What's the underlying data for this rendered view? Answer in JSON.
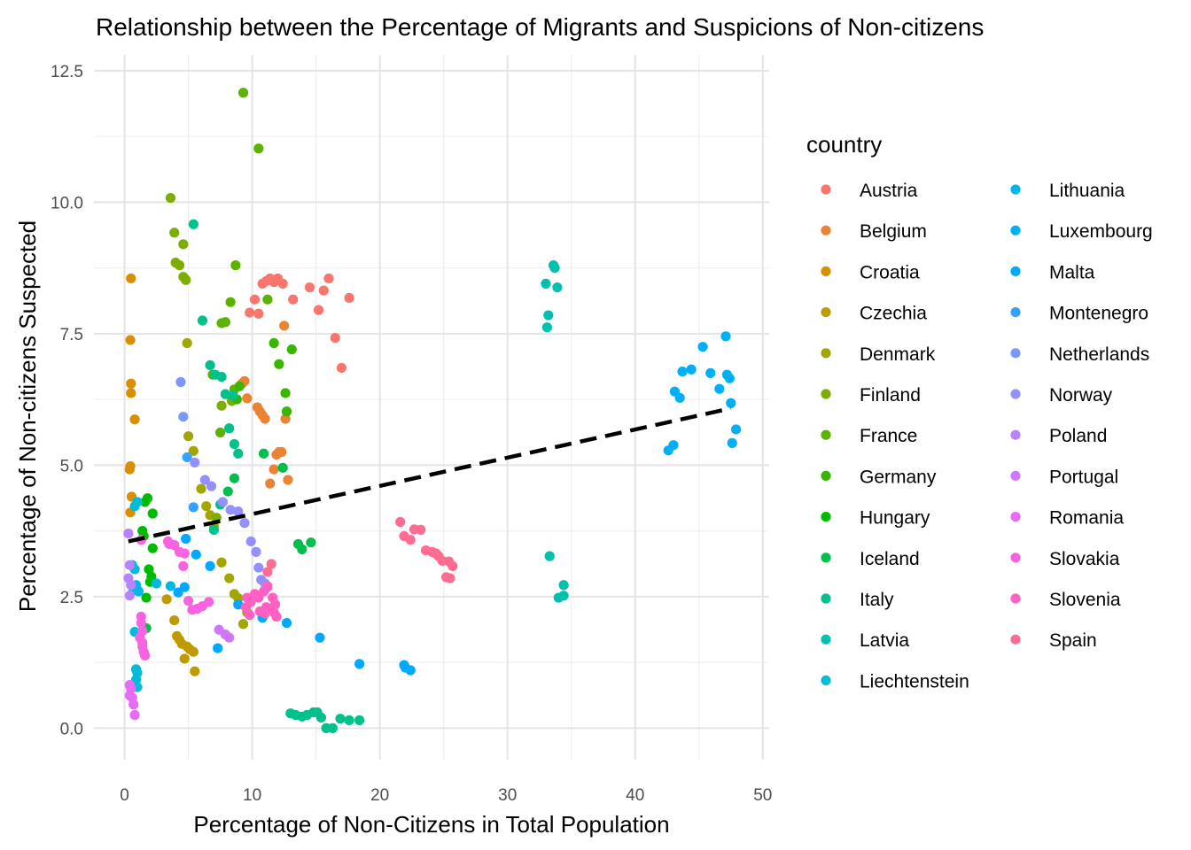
{
  "chart_data": {
    "type": "scatter",
    "title": "Relationship between the Percentage of Migrants and Suspicions of Non-citizens",
    "xlabel": "Percentage of Non-Citizens in Total Population",
    "ylabel": "Percentage of Non-citizens Suspected",
    "xlim": [
      -2.4,
      50.5
    ],
    "ylim": [
      -0.6,
      12.8
    ],
    "x_ticks": [
      0,
      10,
      20,
      30,
      40,
      50
    ],
    "y_ticks": [
      0.0,
      2.5,
      5.0,
      7.5,
      10.0,
      12.5
    ],
    "x_tick_labels": [
      "0",
      "10",
      "20",
      "30",
      "40",
      "50"
    ],
    "y_tick_labels": [
      "0.0",
      "2.5",
      "5.0",
      "7.5",
      "10.0",
      "12.5"
    ],
    "grid": true,
    "legend_title": "country",
    "legend_position": "right",
    "trend_line": {
      "style": "dashed",
      "color": "#000000",
      "x": [
        0.3,
        47.5
      ],
      "y": [
        3.55,
        6.08
      ]
    },
    "series": [
      {
        "name": "Austria",
        "color": "#F8766D",
        "points": [
          [
            9.8,
            7.9
          ],
          [
            10.2,
            8.15
          ],
          [
            10.5,
            7.88
          ],
          [
            10.8,
            8.45
          ],
          [
            11.1,
            8.5
          ],
          [
            11.4,
            8.55
          ],
          [
            11.7,
            8.48
          ],
          [
            12.0,
            8.55
          ],
          [
            12.4,
            8.45
          ],
          [
            13.2,
            8.15
          ],
          [
            14.5,
            8.38
          ],
          [
            15.2,
            7.95
          ],
          [
            15.6,
            8.32
          ],
          [
            16.0,
            8.55
          ],
          [
            16.5,
            7.42
          ],
          [
            17.0,
            6.85
          ],
          [
            17.6,
            8.18
          ]
        ]
      },
      {
        "name": "Belgium",
        "color": "#EB8335",
        "points": [
          [
            9.4,
            6.6
          ],
          [
            9.6,
            6.27
          ],
          [
            10.4,
            6.1
          ],
          [
            10.6,
            6.02
          ],
          [
            10.8,
            5.95
          ],
          [
            11.0,
            5.88
          ],
          [
            11.4,
            4.65
          ],
          [
            11.7,
            4.92
          ],
          [
            11.9,
            5.2
          ],
          [
            12.1,
            5.25
          ],
          [
            12.3,
            5.25
          ],
          [
            12.6,
            5.88
          ],
          [
            12.8,
            4.72
          ],
          [
            12.5,
            7.65
          ],
          [
            9.2,
            6.55
          ]
        ]
      },
      {
        "name": "Croatia",
        "color": "#D89000",
        "points": [
          [
            0.5,
            8.55
          ],
          [
            0.45,
            7.38
          ],
          [
            0.5,
            6.55
          ],
          [
            0.5,
            6.37
          ],
          [
            0.8,
            5.87
          ],
          [
            0.45,
            4.98
          ],
          [
            0.4,
            4.92
          ],
          [
            0.55,
            4.4
          ],
          [
            0.45,
            4.1
          ]
        ]
      },
      {
        "name": "Czechia",
        "color": "#C09B00",
        "points": [
          [
            3.3,
            2.45
          ],
          [
            3.9,
            2.05
          ],
          [
            4.1,
            1.75
          ],
          [
            4.3,
            1.68
          ],
          [
            4.5,
            1.6
          ],
          [
            4.7,
            1.32
          ],
          [
            4.9,
            1.55
          ],
          [
            5.1,
            1.5
          ],
          [
            5.4,
            1.45
          ],
          [
            5.5,
            1.08
          ]
        ]
      },
      {
        "name": "Denmark",
        "color": "#A3A500",
        "points": [
          [
            4.9,
            7.32
          ],
          [
            5.0,
            5.55
          ],
          [
            5.4,
            5.27
          ],
          [
            6.0,
            4.55
          ],
          [
            6.4,
            4.22
          ],
          [
            6.7,
            4.05
          ],
          [
            7.0,
            3.85
          ],
          [
            7.6,
            3.15
          ],
          [
            8.2,
            2.85
          ],
          [
            8.6,
            2.55
          ],
          [
            8.9,
            2.47
          ],
          [
            9.3,
            1.98
          ],
          [
            9.6,
            2.2
          ]
        ]
      },
      {
        "name": "Finland",
        "color": "#7CAE00",
        "points": [
          [
            3.6,
            10.08
          ],
          [
            3.9,
            9.42
          ],
          [
            4.0,
            8.85
          ],
          [
            4.3,
            8.8
          ],
          [
            4.6,
            9.2
          ],
          [
            4.6,
            8.58
          ],
          [
            4.8,
            8.52
          ],
          [
            7.6,
            6.13
          ],
          [
            8.4,
            6.22
          ],
          [
            7.2,
            4.0
          ]
        ]
      },
      {
        "name": "France",
        "color": "#5BB300",
        "points": [
          [
            9.3,
            12.08
          ],
          [
            10.5,
            11.02
          ],
          [
            8.7,
            8.8
          ],
          [
            8.3,
            8.1
          ],
          [
            7.6,
            7.7
          ],
          [
            7.9,
            7.72
          ],
          [
            11.2,
            8.15
          ],
          [
            6.9,
            6.72
          ],
          [
            7.5,
            5.62
          ],
          [
            8.6,
            6.44
          ]
        ]
      },
      {
        "name": "Germany",
        "color": "#39B600",
        "points": [
          [
            11.7,
            7.32
          ],
          [
            12.1,
            6.92
          ],
          [
            12.6,
            6.37
          ],
          [
            12.7,
            6.02
          ],
          [
            13.1,
            7.2
          ],
          [
            8.8,
            6.25
          ],
          [
            9.0,
            6.5
          ]
        ]
      },
      {
        "name": "Hungary",
        "color": "#00BB00",
        "points": [
          [
            1.6,
            4.3
          ],
          [
            1.8,
            4.37
          ],
          [
            2.2,
            4.08
          ],
          [
            1.4,
            3.75
          ],
          [
            1.5,
            3.65
          ],
          [
            2.2,
            3.42
          ],
          [
            1.9,
            3.02
          ],
          [
            2.1,
            2.88
          ],
          [
            2.0,
            2.78
          ],
          [
            1.7,
            2.48
          ]
        ]
      },
      {
        "name": "Iceland",
        "color": "#00BF4B",
        "points": [
          [
            13.6,
            3.5
          ],
          [
            13.9,
            3.4
          ],
          [
            14.6,
            3.53
          ],
          [
            10.9,
            5.22
          ],
          [
            12.4,
            4.95
          ],
          [
            8.6,
            4.75
          ],
          [
            8.1,
            4.5
          ],
          [
            1.7,
            1.9
          ]
        ]
      },
      {
        "name": "Italy",
        "color": "#00C08B",
        "points": [
          [
            5.4,
            9.58
          ],
          [
            6.1,
            7.75
          ],
          [
            6.7,
            6.9
          ],
          [
            7.1,
            6.72
          ],
          [
            7.6,
            6.68
          ],
          [
            7.9,
            6.35
          ],
          [
            8.5,
            6.32
          ],
          [
            8.2,
            5.7
          ],
          [
            8.6,
            5.4
          ],
          [
            8.9,
            5.22
          ],
          [
            7.0,
            3.77
          ],
          [
            7.5,
            4.25
          ],
          [
            13.0,
            0.28
          ],
          [
            13.4,
            0.25
          ],
          [
            13.9,
            0.22
          ],
          [
            14.3,
            0.25
          ],
          [
            14.8,
            0.3
          ],
          [
            15.1,
            0.3
          ],
          [
            15.4,
            0.2
          ],
          [
            15.8,
            0.0
          ],
          [
            16.3,
            0.0
          ],
          [
            16.9,
            0.18
          ],
          [
            17.6,
            0.15
          ],
          [
            18.4,
            0.15
          ]
        ]
      },
      {
        "name": "Latvia",
        "color": "#00C0AF",
        "points": [
          [
            33.0,
            8.45
          ],
          [
            33.6,
            8.8
          ],
          [
            33.7,
            8.75
          ],
          [
            33.9,
            8.38
          ],
          [
            33.2,
            7.85
          ],
          [
            33.1,
            7.62
          ],
          [
            33.3,
            3.27
          ],
          [
            34.0,
            2.48
          ],
          [
            34.4,
            2.52
          ],
          [
            34.4,
            2.72
          ]
        ]
      },
      {
        "name": "Liechtenstein",
        "color": "#00BCD8",
        "points": [
          [
            0.8,
            4.22
          ],
          [
            1.0,
            4.3
          ],
          [
            0.6,
            3.1
          ],
          [
            0.8,
            3.02
          ],
          [
            0.7,
            2.62
          ],
          [
            0.8,
            1.83
          ],
          [
            0.9,
            1.12
          ],
          [
            1.0,
            1.05
          ],
          [
            0.9,
            0.92
          ],
          [
            1.0,
            0.78
          ]
        ]
      },
      {
        "name": "Lithuania",
        "color": "#00B8E7",
        "points": [
          [
            2.5,
            2.75
          ],
          [
            3.6,
            2.7
          ],
          [
            0.9,
            2.72
          ],
          [
            1.1,
            2.6
          ]
        ]
      },
      {
        "name": "Luxembourg",
        "color": "#00B0F6",
        "points": [
          [
            42.6,
            5.28
          ],
          [
            43.0,
            5.38
          ],
          [
            43.1,
            6.4
          ],
          [
            43.5,
            6.28
          ],
          [
            43.7,
            6.78
          ],
          [
            44.4,
            6.82
          ],
          [
            45.3,
            7.25
          ],
          [
            45.9,
            6.75
          ],
          [
            46.6,
            6.45
          ],
          [
            47.1,
            7.45
          ],
          [
            47.2,
            6.72
          ],
          [
            47.4,
            6.65
          ],
          [
            47.5,
            6.18
          ],
          [
            47.6,
            5.42
          ],
          [
            47.9,
            5.68
          ]
        ]
      },
      {
        "name": "Malta",
        "color": "#00A9FF",
        "points": [
          [
            4.8,
            3.6
          ],
          [
            5.6,
            3.3
          ],
          [
            4.7,
            2.68
          ],
          [
            4.2,
            2.58
          ],
          [
            6.7,
            3.08
          ],
          [
            7.3,
            1.52
          ],
          [
            8.9,
            2.35
          ],
          [
            10.8,
            2.1
          ],
          [
            12.7,
            2.0
          ],
          [
            15.3,
            1.72
          ],
          [
            18.4,
            1.22
          ],
          [
            21.9,
            1.2
          ],
          [
            22.0,
            1.15
          ],
          [
            22.4,
            1.1
          ]
        ]
      },
      {
        "name": "Montenegro",
        "color": "#35A2FF",
        "points": [
          [
            4.9,
            5.15
          ],
          [
            5.4,
            4.2
          ]
        ]
      },
      {
        "name": "Netherlands",
        "color": "#7997FF",
        "points": [
          [
            4.4,
            6.58
          ],
          [
            4.6,
            5.92
          ]
        ]
      },
      {
        "name": "Norway",
        "color": "#9590FF",
        "points": [
          [
            5.5,
            5.05
          ],
          [
            6.3,
            4.72
          ],
          [
            6.8,
            4.6
          ],
          [
            7.7,
            4.3
          ],
          [
            8.3,
            4.15
          ],
          [
            8.9,
            4.12
          ],
          [
            9.4,
            3.9
          ],
          [
            9.9,
            3.55
          ],
          [
            10.3,
            3.35
          ],
          [
            10.5,
            3.05
          ],
          [
            10.7,
            2.82
          ],
          [
            11.0,
            2.75
          ],
          [
            11.2,
            2.68
          ]
        ]
      },
      {
        "name": "Poland",
        "color": "#B983FF",
        "points": [
          [
            0.3,
            3.7
          ],
          [
            0.4,
            3.1
          ],
          [
            0.3,
            2.85
          ],
          [
            0.5,
            2.72
          ],
          [
            0.4,
            2.52
          ]
        ]
      },
      {
        "name": "Portugal",
        "color": "#CF78FF",
        "points": [
          [
            7.4,
            1.87
          ],
          [
            7.9,
            1.78
          ],
          [
            8.2,
            1.72
          ]
        ]
      },
      {
        "name": "Romania",
        "color": "#E76BF3",
        "points": [
          [
            0.4,
            0.82
          ],
          [
            0.5,
            0.75
          ],
          [
            0.4,
            0.62
          ],
          [
            0.6,
            0.58
          ],
          [
            0.7,
            0.45
          ],
          [
            0.8,
            0.25
          ]
        ]
      },
      {
        "name": "Slovakia",
        "color": "#F763E0",
        "points": [
          [
            1.3,
            3.58
          ],
          [
            3.4,
            3.55
          ],
          [
            3.5,
            3.5
          ],
          [
            3.9,
            3.48
          ],
          [
            4.3,
            3.35
          ],
          [
            4.7,
            3.32
          ],
          [
            4.6,
            3.08
          ],
          [
            5.0,
            2.42
          ],
          [
            5.3,
            2.25
          ],
          [
            5.7,
            2.27
          ],
          [
            6.1,
            2.32
          ],
          [
            6.6,
            2.4
          ],
          [
            1.3,
            2.12
          ],
          [
            1.3,
            2.0
          ],
          [
            1.4,
            1.85
          ],
          [
            1.2,
            1.72
          ],
          [
            1.4,
            1.62
          ],
          [
            1.4,
            1.55
          ],
          [
            1.5,
            1.45
          ],
          [
            1.6,
            1.38
          ]
        ]
      },
      {
        "name": "Slovenia",
        "color": "#FF61C3",
        "points": [
          [
            9.6,
            2.48
          ],
          [
            9.9,
            2.4
          ],
          [
            10.2,
            2.55
          ],
          [
            10.5,
            2.48
          ],
          [
            10.9,
            2.6
          ],
          [
            11.2,
            2.7
          ],
          [
            11.6,
            2.48
          ],
          [
            11.8,
            2.35
          ],
          [
            11.4,
            2.25
          ],
          [
            11.7,
            2.2
          ],
          [
            11.0,
            2.18
          ],
          [
            11.9,
            2.12
          ],
          [
            10.6,
            2.22
          ],
          [
            9.5,
            2.3
          ],
          [
            9.8,
            2.15
          ],
          [
            11.1,
            2.3
          ]
        ]
      },
      {
        "name": "Spain",
        "color": "#FF6C91",
        "points": [
          [
            11.5,
            3.12
          ],
          [
            11.2,
            2.97
          ],
          [
            21.6,
            3.92
          ],
          [
            21.9,
            3.65
          ],
          [
            22.4,
            3.58
          ],
          [
            22.7,
            3.78
          ],
          [
            23.2,
            3.77
          ],
          [
            23.6,
            3.38
          ],
          [
            24.1,
            3.35
          ],
          [
            24.4,
            3.32
          ],
          [
            24.6,
            3.27
          ],
          [
            24.9,
            3.18
          ],
          [
            25.4,
            3.17
          ],
          [
            25.7,
            3.08
          ],
          [
            25.2,
            2.87
          ],
          [
            25.5,
            2.85
          ]
        ]
      }
    ]
  }
}
